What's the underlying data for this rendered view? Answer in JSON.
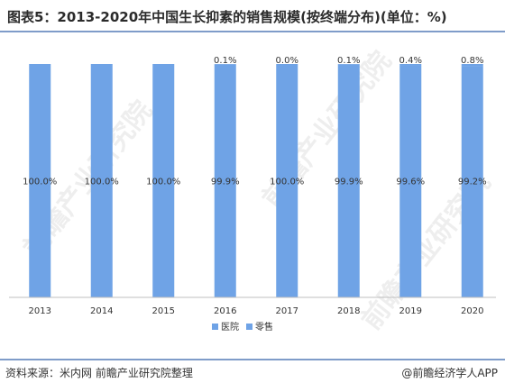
{
  "title": "图表5：2013-2020年中国生长抑素的销售规模(按终端分布)(单位：%)",
  "source": "资料来源：米内网 前瞻产业研究院整理",
  "brand": "@前瞻经济学人APP",
  "watermark": "前瞻产业研究院",
  "colors": {
    "hospital": "#6fa3e6",
    "retail": "#6fa3e6",
    "axis": "#bfbfbf",
    "rule": "#7f9cc9"
  },
  "chart_data": {
    "type": "bar",
    "stacked": true,
    "categories": [
      "2013",
      "2014",
      "2015",
      "2016",
      "2017",
      "2018",
      "2019",
      "2020"
    ],
    "series": [
      {
        "name": "医院",
        "values": [
          100.0,
          100.0,
          100.0,
          99.9,
          100.0,
          99.9,
          99.6,
          99.2
        ],
        "labels": [
          "100.0%",
          "100.0%",
          "100.0%",
          "99.9%",
          "100.0%",
          "99.9%",
          "99.6%",
          "99.2%"
        ]
      },
      {
        "name": "零售",
        "values": [
          0.0,
          0.0,
          0.0,
          0.1,
          0.0,
          0.1,
          0.4,
          0.8
        ],
        "labels": [
          "",
          "",
          "",
          "0.1%",
          "0.0%",
          "0.1%",
          "0.4%",
          "0.8%"
        ]
      }
    ],
    "ylim": [
      0,
      100
    ],
    "grid": false,
    "legend_position": "bottom"
  }
}
